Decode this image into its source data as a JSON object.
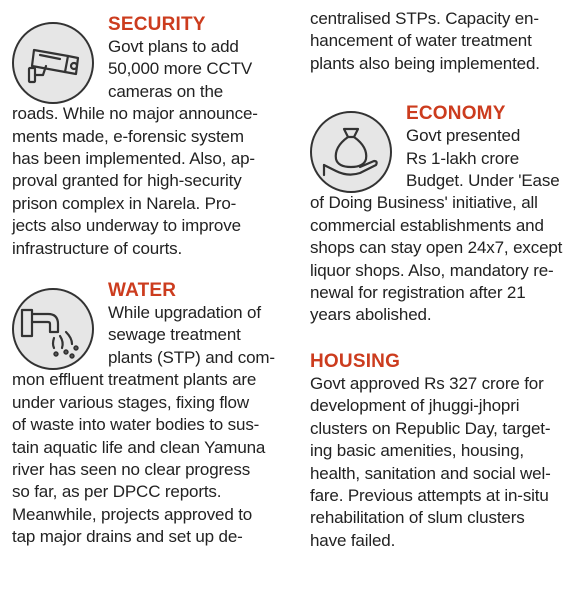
{
  "sections": {
    "security": {
      "heading": "SECURITY",
      "icon": "cctv-camera-icon",
      "lines": [
        "Govt plans to add",
        "50,000 more CCTV",
        "cameras on the",
        "roads. While no major announce-",
        "ments made, e-forensic system",
        "has been implemented. Also, ap-",
        "proval granted for high-security",
        "prison complex in Narela. Pro-",
        "jects also underway to improve",
        "infrastructure of courts."
      ]
    },
    "water": {
      "heading": "WATER",
      "icon": "sewage-pipe-icon",
      "lines": [
        "While upgradation of",
        "sewage treatment",
        "plants (STP) and com-",
        "mon effluent treatment plants are",
        "under various stages, fixing flow",
        "of waste into water bodies to sus-",
        "tain aquatic life and clean Yamuna",
        "river has seen no clear progress",
        "so far, as per DPCC reports.",
        "Meanwhile, projects approved to",
        "tap major drains and set up de-"
      ],
      "continued_lines": [
        "centralised STPs. Capacity en-",
        "hancement of water treatment",
        "plants also being implemented."
      ]
    },
    "economy": {
      "heading": "ECONOMY",
      "icon": "money-bag-hand-icon",
      "lines": [
        "Govt presented",
        "Rs 1-lakh crore",
        "Budget. Under 'Ease",
        "of Doing Business' initiative, all",
        "commercial establishments and",
        "shops can stay open 24x7, except",
        "liquor shops. Also, mandatory re-",
        "newal for registration after 21",
        "years abolished."
      ]
    },
    "housing": {
      "heading": "HOUSING",
      "lines": [
        "Govt approved Rs 327 crore for",
        "development of jhuggi-jhopri",
        "clusters on Republic Day, target-",
        "ing basic amenities, housing,",
        "health, sanitation and social wel-",
        "fare. Previous attempts at in-situ",
        "rehabilitation of slum clusters",
        "have failed."
      ]
    }
  },
  "colors": {
    "heading": "#cc3c1e",
    "text": "#222222",
    "icon_stroke": "#333333",
    "icon_bg": "#e6e6e6"
  }
}
